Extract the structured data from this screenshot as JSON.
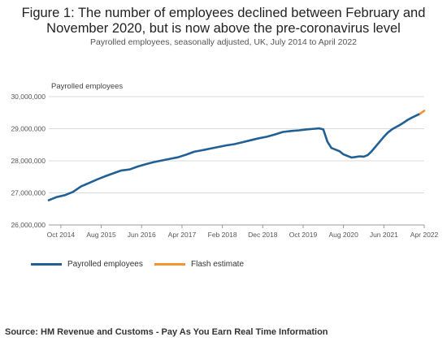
{
  "title_line1": "Figure 1: The number of employees declined between February and",
  "title_line2": "November 2020, but is now above the pre-coronavirus level",
  "subtitle": "Payrolled employees, seasonally adjusted, UK, July 2014 to April 2022",
  "source": "Source: HM Revenue and Customs - Pay As You Earn Real Time Information",
  "colors": {
    "main": "#206095",
    "flash": "#F39431",
    "grid": "#d9d9d9",
    "axis": "#999999"
  },
  "chart_data": {
    "type": "line",
    "ylabel": "Payrolled employees",
    "ylim": [
      26000000,
      30000000
    ],
    "yticks": [
      26000000,
      27000000,
      28000000,
      29000000,
      30000000
    ],
    "ytick_labels": [
      "26,000,000",
      "27,000,000",
      "28,000,000",
      "29,000,000",
      "30,000,000"
    ],
    "xtick_labels": [
      "Oct 2014",
      "Aug 2015",
      "Jun 2016",
      "Apr 2017",
      "Feb 2018",
      "Dec 2018",
      "Oct 2019",
      "Aug 2020",
      "Jun 2021",
      "Apr 2022"
    ],
    "x_start": "2014-07",
    "x_end": "2022-04",
    "grid": true,
    "legend_position": "bottom",
    "series": [
      {
        "name": "Payrolled employees",
        "color": "#206095",
        "x": [
          "2014-07",
          "2014-09",
          "2014-11",
          "2015-01",
          "2015-03",
          "2015-05",
          "2015-07",
          "2015-09",
          "2015-11",
          "2016-01",
          "2016-03",
          "2016-05",
          "2016-07",
          "2016-09",
          "2016-11",
          "2017-01",
          "2017-03",
          "2017-05",
          "2017-07",
          "2017-09",
          "2017-11",
          "2018-01",
          "2018-03",
          "2018-05",
          "2018-07",
          "2018-09",
          "2018-11",
          "2019-01",
          "2019-03",
          "2019-05",
          "2019-07",
          "2019-09",
          "2019-11",
          "2020-01",
          "2020-02",
          "2020-03",
          "2020-04",
          "2020-05",
          "2020-06",
          "2020-07",
          "2020-08",
          "2020-09",
          "2020-10",
          "2020-11",
          "2020-12",
          "2021-01",
          "2021-02",
          "2021-03",
          "2021-04",
          "2021-05",
          "2021-06",
          "2021-07",
          "2021-08",
          "2021-09",
          "2021-10",
          "2021-11",
          "2021-12",
          "2022-01",
          "2022-02",
          "2022-03"
        ],
        "values": [
          26770000,
          26870000,
          26930000,
          27030000,
          27200000,
          27310000,
          27420000,
          27520000,
          27610000,
          27700000,
          27730000,
          27820000,
          27890000,
          27960000,
          28010000,
          28060000,
          28110000,
          28190000,
          28280000,
          28330000,
          28380000,
          28430000,
          28480000,
          28520000,
          28580000,
          28640000,
          28700000,
          28750000,
          28820000,
          28900000,
          28930000,
          28950000,
          28980000,
          29000000,
          29010000,
          28980000,
          28600000,
          28400000,
          28350000,
          28300000,
          28200000,
          28150000,
          28100000,
          28120000,
          28140000,
          28130000,
          28180000,
          28300000,
          28450000,
          28600000,
          28750000,
          28880000,
          28980000,
          29050000,
          29120000,
          29200000,
          29280000,
          29350000,
          29410000,
          29470000
        ]
      },
      {
        "name": "Flash estimate",
        "color": "#F39431",
        "x": [
          "2022-03",
          "2022-04"
        ],
        "values": [
          29470000,
          29560000
        ]
      }
    ]
  }
}
